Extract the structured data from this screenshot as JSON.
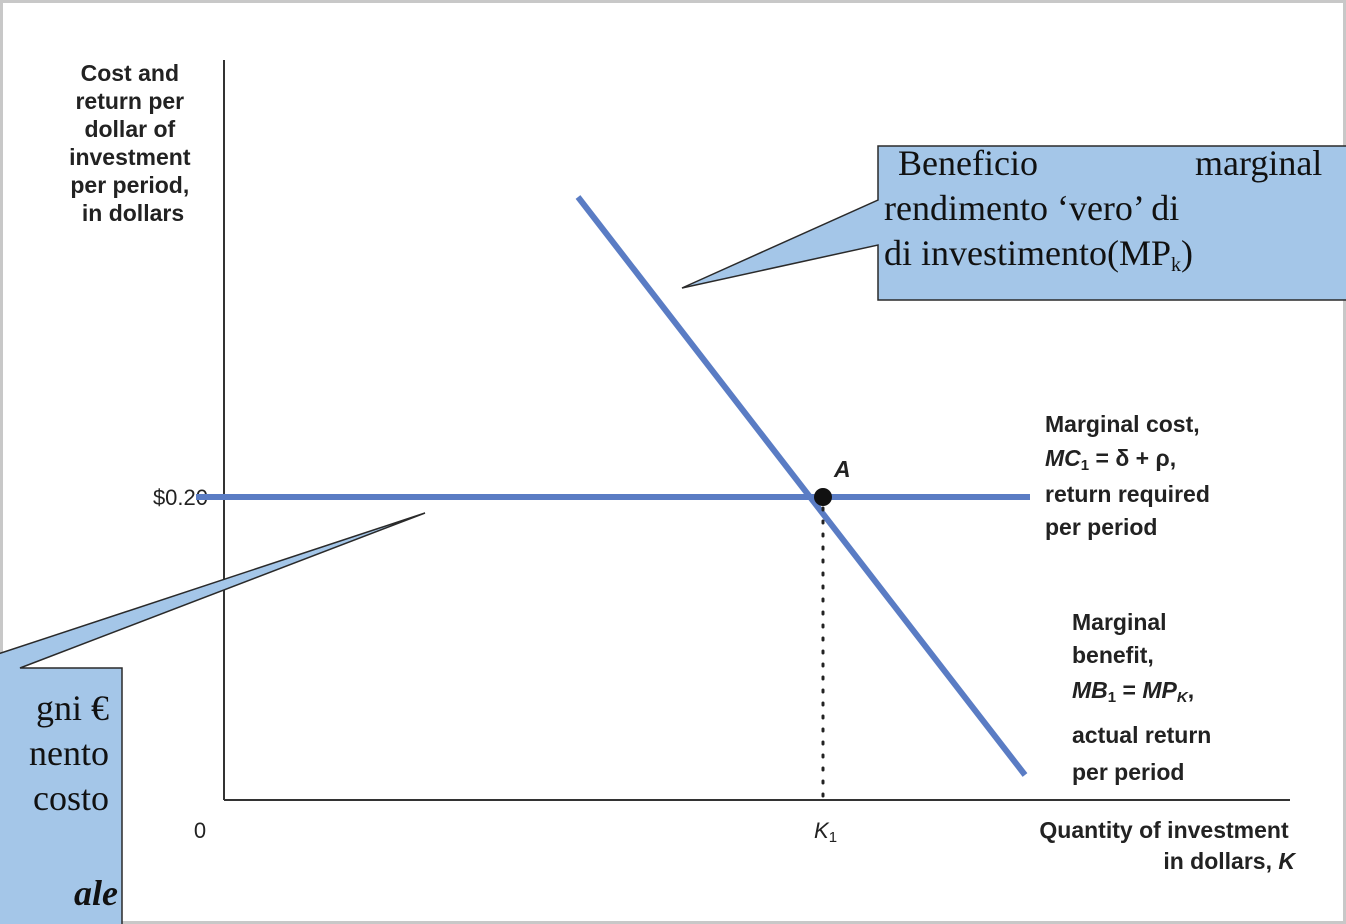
{
  "axis": {
    "y_label": [
      "Cost and",
      "return per",
      "dollar of",
      "investment",
      "per period,",
      "in dollars"
    ],
    "y_tick": "$0.20",
    "origin": "0",
    "x_tick": [
      "K",
      "1"
    ],
    "x_label": [
      "Quantity of investment",
      "in dollars, ",
      "K"
    ]
  },
  "point": "A",
  "mc_label": [
    "Marginal cost,",
    "MC",
    "1",
    " = δ + ρ,",
    "return required",
    "per period"
  ],
  "mb_label": [
    "Marginal",
    "benefit,",
    "MB",
    "1",
    " = ",
    "MP",
    "K",
    ",",
    "actual return",
    "per period"
  ],
  "callout_top": [
    "Beneficio",
    "marginal",
    "rendimento ‘vero’ di",
    "di investimento(MP",
    "k",
    ")"
  ],
  "callout_bottom": [
    "gni €",
    "nento",
    "costo",
    "ale"
  ]
}
